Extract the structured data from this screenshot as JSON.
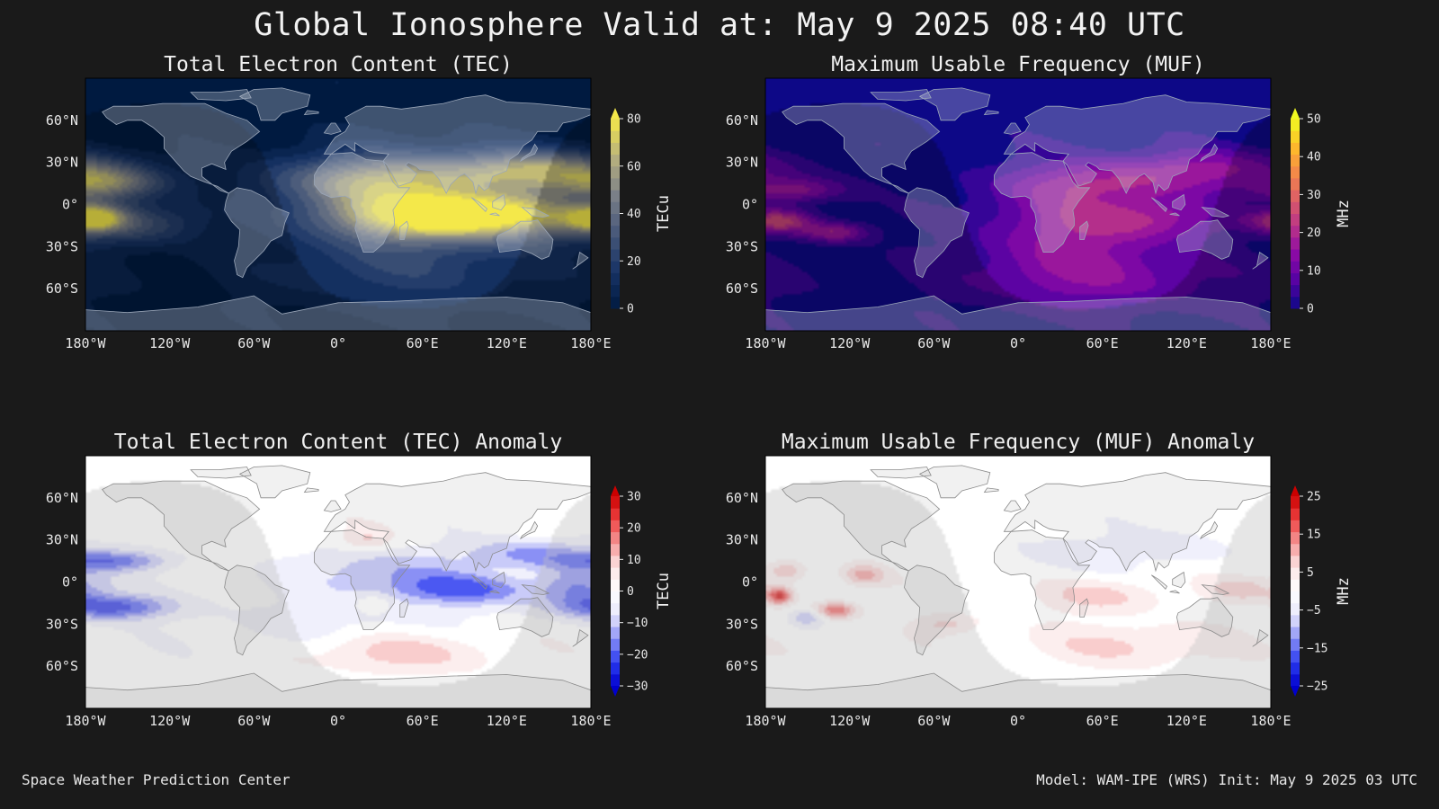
{
  "title": "Global Ionosphere Valid at: May 9 2025 08:40 UTC",
  "footer": {
    "left": "Space Weather Prediction Center",
    "right": "Model: WAM-IPE (WRS) Init: May 9 2025 03 UTC"
  },
  "colors": {
    "background": "#1a1a1a",
    "text": "#e8e8e8",
    "coastline_dark": "#9aa6b8",
    "coastline_light": "#8a8a8a",
    "night_shade": "#000000"
  },
  "chart_data": [
    {
      "id": "tec",
      "type": "heatmap",
      "title": "Total Electron Content (TEC)",
      "colorbar_label": "TECu",
      "colorbar_ticks": [
        0,
        20,
        40,
        60,
        80
      ],
      "clim": [
        0,
        80
      ],
      "colormap": [
        "#001a40",
        "#183466",
        "#48597a",
        "#7c8088",
        "#b8b17e",
        "#f4e84a"
      ],
      "extend": "max",
      "xlim": [
        -180,
        180
      ],
      "ylim": [
        -90,
        90
      ],
      "x_ticks": [
        "180°W",
        "120°W",
        "60°W",
        "0°",
        "60°E",
        "120°E",
        "180°E"
      ],
      "y_ticks": [
        "60°N",
        "30°N",
        "0°",
        "30°S",
        "60°S"
      ],
      "features": [
        {
          "lon": 95,
          "lat": -8,
          "sx": 65,
          "sy": 12,
          "v": 85
        },
        {
          "lon": 30,
          "lat": 18,
          "sx": 55,
          "sy": 12,
          "v": 45
        },
        {
          "lon": 145,
          "lat": 25,
          "sx": 45,
          "sy": 10,
          "v": 55
        },
        {
          "lon": -165,
          "lat": 15,
          "sx": 28,
          "sy": 8,
          "v": 45
        },
        {
          "lon": -175,
          "lat": -10,
          "sx": 15,
          "sy": 6,
          "v": 60
        },
        {
          "lon": 40,
          "lat": -5,
          "sx": 55,
          "sy": 30,
          "v": 22
        },
        {
          "lon": 60,
          "lat": -50,
          "sx": 90,
          "sy": 18,
          "v": 14
        },
        {
          "lon": -140,
          "lat": -15,
          "sx": 30,
          "sy": 10,
          "v": 22
        }
      ]
    },
    {
      "id": "muf",
      "type": "heatmap",
      "title": "Maximum Usable Frequency (MUF)",
      "colorbar_label": "MHz",
      "colorbar_ticks": [
        0,
        10,
        20,
        30,
        40,
        50
      ],
      "clim": [
        0,
        50
      ],
      "colormap": [
        "#0d0887",
        "#5302a3",
        "#8b0aa5",
        "#b83289",
        "#db5c68",
        "#f48849",
        "#febc2a",
        "#f0f921"
      ],
      "extend": "max",
      "xlim": [
        -180,
        180
      ],
      "ylim": [
        -90,
        90
      ],
      "x_ticks": [
        "180°W",
        "120°W",
        "60°W",
        "0°",
        "60°E",
        "120°E",
        "180°E"
      ],
      "y_ticks": [
        "60°N",
        "30°N",
        "0°",
        "30°S",
        "60°S"
      ],
      "features": [
        {
          "lon": -170,
          "lat": -12,
          "sx": 18,
          "sy": 6,
          "v": 24
        },
        {
          "lon": -130,
          "lat": -20,
          "sx": 16,
          "sy": 5,
          "v": 18
        },
        {
          "lon": -160,
          "lat": 10,
          "sx": 25,
          "sy": 6,
          "v": 16
        },
        {
          "lon": 40,
          "lat": -20,
          "sx": 50,
          "sy": 28,
          "v": 15
        },
        {
          "lon": 60,
          "lat": 15,
          "sx": 45,
          "sy": 10,
          "v": 12
        },
        {
          "lon": 140,
          "lat": 25,
          "sx": 45,
          "sy": 10,
          "v": 14
        },
        {
          "lon": 95,
          "lat": -10,
          "sx": 40,
          "sy": 10,
          "v": 12
        },
        {
          "lon": 70,
          "lat": -55,
          "sx": 80,
          "sy": 15,
          "v": 8
        }
      ]
    },
    {
      "id": "tec_anomaly",
      "type": "heatmap",
      "title": "Total Electron Content (TEC) Anomaly",
      "colorbar_label": "TECu",
      "colorbar_ticks": [
        -30,
        -20,
        -10,
        0,
        10,
        20,
        30
      ],
      "clim": [
        -30,
        30
      ],
      "colormap": [
        "#0000cc",
        "#2b3cf0",
        "#8a90f5",
        "#e8e8fb",
        "#ffffff",
        "#fbe6e6",
        "#f59a9a",
        "#ee4444",
        "#cc0000"
      ],
      "extend": "both",
      "xlim": [
        -180,
        180
      ],
      "ylim": [
        -90,
        90
      ],
      "x_ticks": [
        "180°W",
        "120°W",
        "60°W",
        "0°",
        "60°E",
        "120°E",
        "180°E"
      ],
      "y_ticks": [
        "60°N",
        "30°N",
        "0°",
        "30°S",
        "60°S"
      ],
      "features": [
        {
          "lon": 40,
          "lat": -50,
          "sx": 50,
          "sy": 10,
          "v": 12
        },
        {
          "lon": 85,
          "lat": -5,
          "sx": 40,
          "sy": 8,
          "v": -18
        },
        {
          "lon": 30,
          "lat": 10,
          "sx": 40,
          "sy": 10,
          "v": -10
        },
        {
          "lon": 140,
          "lat": 20,
          "sx": 35,
          "sy": 8,
          "v": -14
        },
        {
          "lon": -160,
          "lat": -18,
          "sx": 28,
          "sy": 6,
          "v": -24
        },
        {
          "lon": -160,
          "lat": 15,
          "sx": 28,
          "sy": 5,
          "v": -18
        },
        {
          "lon": 170,
          "lat": -5,
          "sx": 20,
          "sy": 10,
          "v": -16
        },
        {
          "lon": 20,
          "lat": 30,
          "sx": 12,
          "sy": 6,
          "v": 8
        },
        {
          "lon": 25,
          "lat": -15,
          "sx": 10,
          "sy": 5,
          "v": 8
        },
        {
          "lon": 0,
          "lat": -30,
          "sx": 70,
          "sy": 20,
          "v": -5
        }
      ]
    },
    {
      "id": "muf_anomaly",
      "type": "heatmap",
      "title": "Maximum Usable Frequency (MUF) Anomaly",
      "colorbar_label": "MHz",
      "colorbar_ticks": [
        -25,
        -15,
        -5,
        5,
        15,
        25
      ],
      "clim": [
        -25,
        25
      ],
      "colormap": [
        "#0000cc",
        "#2b3cf0",
        "#8a90f5",
        "#e8e8fb",
        "#ffffff",
        "#fbe6e6",
        "#f59a9a",
        "#ee4444",
        "#cc0000"
      ],
      "extend": "both",
      "xlim": [
        -180,
        180
      ],
      "ylim": [
        -90,
        90
      ],
      "x_ticks": [
        "180°W",
        "120°W",
        "60°W",
        "0°",
        "60°E",
        "120°E",
        "180°E"
      ],
      "y_ticks": [
        "60°N",
        "30°N",
        "0°",
        "30°S",
        "60°S"
      ],
      "features": [
        {
          "lon": -170,
          "lat": -10,
          "sx": 6,
          "sy": 4,
          "v": 22
        },
        {
          "lon": -130,
          "lat": -20,
          "sx": 10,
          "sy": 4,
          "v": 18
        },
        {
          "lon": -110,
          "lat": 5,
          "sx": 10,
          "sy": 5,
          "v": 12
        },
        {
          "lon": -165,
          "lat": 8,
          "sx": 10,
          "sy": 5,
          "v": 10
        },
        {
          "lon": -150,
          "lat": -25,
          "sx": 8,
          "sy": 4,
          "v": -10
        },
        {
          "lon": 60,
          "lat": -10,
          "sx": 30,
          "sy": 8,
          "v": 8
        },
        {
          "lon": 80,
          "lat": -45,
          "sx": 50,
          "sy": 10,
          "v": 7
        },
        {
          "lon": 160,
          "lat": -5,
          "sx": 18,
          "sy": 6,
          "v": 8
        },
        {
          "lon": -50,
          "lat": -30,
          "sx": 15,
          "sy": 5,
          "v": 8
        },
        {
          "lon": 40,
          "lat": 20,
          "sx": 30,
          "sy": 10,
          "v": -5
        },
        {
          "lon": 120,
          "lat": 25,
          "sx": 25,
          "sy": 8,
          "v": -5
        }
      ]
    }
  ]
}
